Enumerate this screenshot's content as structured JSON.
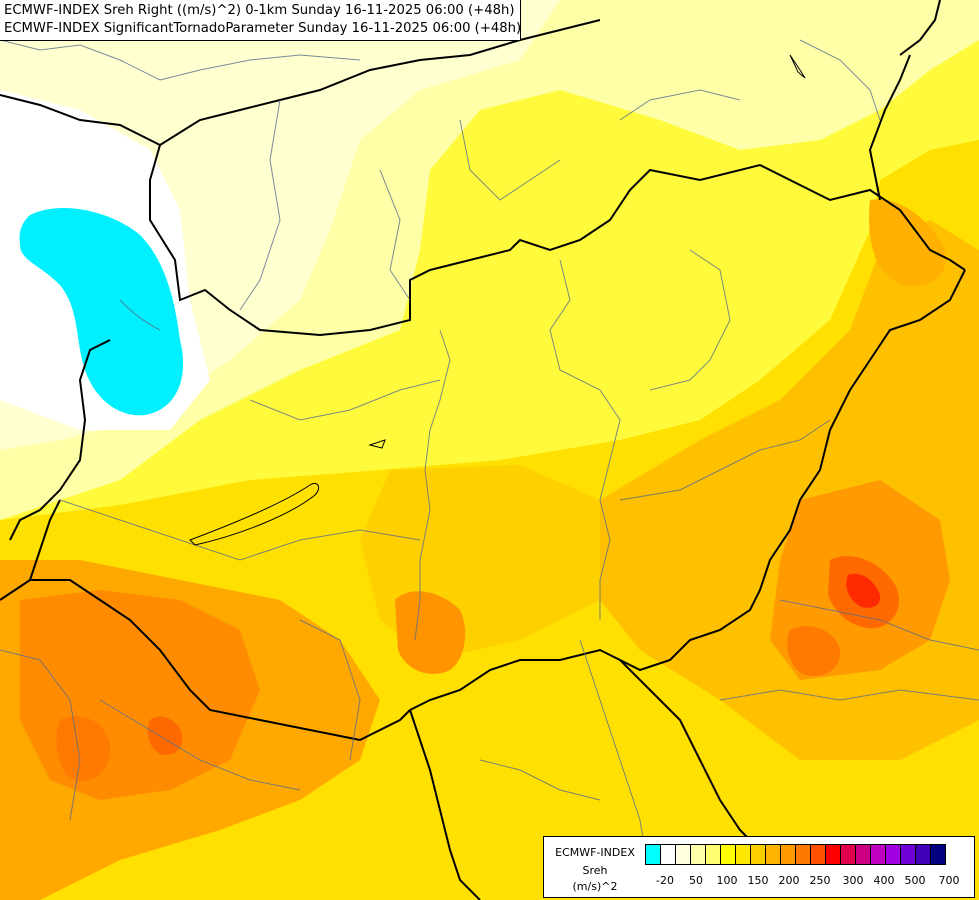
{
  "header": {
    "line1": "ECMWF-INDEX Sreh Right ((m/s)^2) 0-1km Sunday 16-11-2025 06:00 (+48h)",
    "line2": "ECMWF-INDEX SignificantTornadoParameter Sunday 16-11-2025 06:00 (+48h)"
  },
  "legend": {
    "label_model": "ECMWF-INDEX",
    "label_field": "Sreh",
    "label_unit": "(m/s)^2",
    "colors": [
      "#00ffff",
      "#ffffff",
      "#ffffe0",
      "#ffffaa",
      "#ffff70",
      "#ffff00",
      "#ffe800",
      "#ffd000",
      "#ffb400",
      "#ff9a00",
      "#ff7800",
      "#ff5000",
      "#ff0000",
      "#e0004c",
      "#cc0080",
      "#c000c0",
      "#a000e0",
      "#7000d8",
      "#4000b8",
      "#000080"
    ],
    "ticks": [
      {
        "label": "-20",
        "value": -20
      },
      {
        "label": "50",
        "value": 50
      },
      {
        "label": "100",
        "value": 100
      },
      {
        "label": "150",
        "value": 150
      },
      {
        "label": "200",
        "value": 200
      },
      {
        "label": "250",
        "value": 250
      },
      {
        "label": "300",
        "value": 300
      },
      {
        "label": "400",
        "value": 400
      },
      {
        "label": "500",
        "value": 500
      },
      {
        "label": "700",
        "value": 700
      }
    ]
  }
}
